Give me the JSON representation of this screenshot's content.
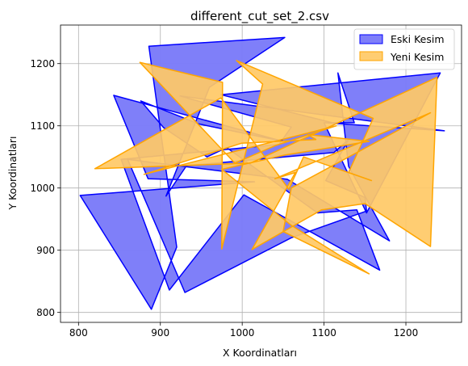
{
  "chart_data": {
    "type": "area",
    "title": "different_cut_set_2.csv",
    "xlabel": "X Koordinatları",
    "ylabel": "Y Koordinatları",
    "xlim": [
      778,
      1268
    ],
    "ylim": [
      784,
      1262
    ],
    "xticks": [
      800,
      900,
      1000,
      1100,
      1200
    ],
    "yticks": [
      800,
      900,
      1000,
      1100,
      1200
    ],
    "grid": true,
    "legend_position": "top-right",
    "series": [
      {
        "name": "Eski Kesim",
        "fill": "#7b7bf9",
        "stroke": "#0000ff",
        "fill_opacity": 0.97,
        "polygons": [
          [
            [
              886,
              1228
            ],
            [
              1052,
              1242
            ],
            [
              960,
              1162
            ],
            [
              907,
              987
            ],
            [
              932,
              1036
            ],
            [
              1112,
              1057
            ],
            [
              1130,
              1078
            ],
            [
              1102,
              1012
            ],
            [
              1150,
              985
            ],
            [
              1152,
              963
            ],
            [
              1060,
              920
            ],
            [
              930,
              832
            ],
            [
              860,
              1046
            ],
            [
              1055,
              1014
            ],
            [
              1180,
              915
            ],
            [
              1130,
              1035
            ],
            [
              1117,
              1185
            ],
            [
              1137,
              1105
            ],
            [
              1110,
              1105
            ],
            [
              974,
              1150
            ],
            [
              1242,
              1185
            ],
            [
              1152,
              960
            ],
            [
              1100,
              1105
            ],
            [
              1247,
              1092
            ],
            [
              924,
              1148
            ],
            [
              1060,
              1098
            ],
            [
              1045,
              1070
            ],
            [
              852,
              1046
            ],
            [
              911,
              836
            ],
            [
              1002,
              989
            ],
            [
              1168,
              868
            ],
            [
              1140,
              965
            ],
            [
              1092,
              960
            ],
            [
              981,
              1065
            ],
            [
              957,
              1050
            ],
            [
              904,
              1097
            ],
            [
              876,
              1140
            ],
            [
              947,
              1103
            ],
            [
              1050,
              1075
            ],
            [
              843,
              1149
            ],
            [
              885,
              1015
            ],
            [
              1015,
              1010
            ],
            [
              802,
              988
            ],
            [
              889,
              805
            ],
            [
              920,
              905
            ]
          ]
        ]
      },
      {
        "name": "Yeni Kesim",
        "fill": "#ffc966",
        "stroke": "#ffa500",
        "fill_opacity": 0.92,
        "polygons": [
          [
            [
              875,
              1202
            ],
            [
              976,
              1170
            ],
            [
              975,
              902
            ],
            [
              1025,
              1167
            ],
            [
              993,
              1205
            ],
            [
              1160,
              1112
            ],
            [
              1130,
              1025
            ],
            [
              1158,
              1012
            ],
            [
              1075,
              1050
            ],
            [
              1057,
              998
            ],
            [
              974,
              1145
            ],
            [
              820,
              1031
            ],
            [
              1010,
              1040
            ],
            [
              1238,
              1178
            ],
            [
              1230,
              906
            ],
            [
              1150,
              975
            ],
            [
              1097,
              965
            ],
            [
              1012,
              901
            ],
            [
              1065,
              1025
            ],
            [
              1040,
              1015
            ],
            [
              1230,
              1121
            ],
            [
              1060,
              1000
            ],
            [
              1050,
              930
            ],
            [
              1155,
              862
            ],
            [
              1060,
              940
            ],
            [
              975,
              1030
            ],
            [
              1052,
              1053
            ],
            [
              1155,
              1075
            ],
            [
              1080,
              1086
            ],
            [
              1090,
              1078
            ],
            [
              999,
              1072
            ],
            [
              880,
              1022
            ],
            [
              1115,
              1100
            ],
            [
              1040,
              1068
            ],
            [
              991,
              1040
            ]
          ]
        ]
      }
    ]
  }
}
